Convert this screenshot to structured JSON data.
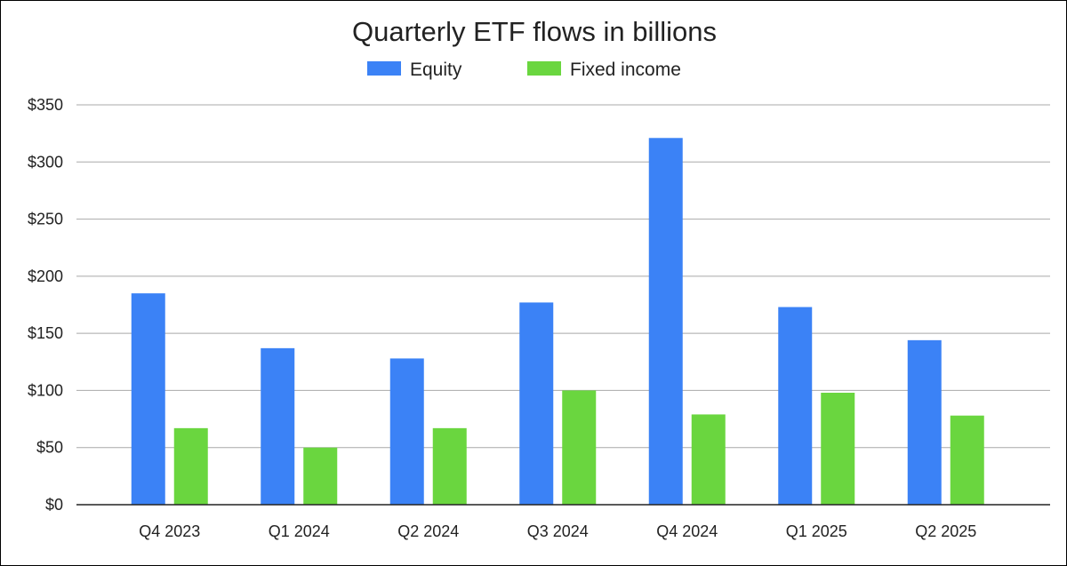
{
  "chart_data": {
    "type": "bar",
    "title": "Quarterly ETF flows in billions",
    "xlabel": "",
    "ylabel": "",
    "categories": [
      "Q4 2023",
      "Q1 2024",
      "Q2 2024",
      "Q3 2024",
      "Q4 2024",
      "Q1 2025",
      "Q2 2025"
    ],
    "series": [
      {
        "name": "Equity",
        "color": "#3b82f6",
        "values": [
          185,
          137,
          128,
          177,
          321,
          173,
          144
        ]
      },
      {
        "name": "Fixed income",
        "color": "#6ad63f",
        "values": [
          67,
          50,
          67,
          100,
          79,
          98,
          78
        ]
      }
    ],
    "ylim": [
      0,
      350
    ],
    "yticks": [
      0,
      50,
      100,
      150,
      200,
      250,
      300,
      350
    ],
    "ytick_labels": [
      "$0",
      "$50",
      "$100",
      "$150",
      "$200",
      "$250",
      "$300",
      "$350"
    ],
    "grid": true,
    "legend_position": "top-center"
  }
}
